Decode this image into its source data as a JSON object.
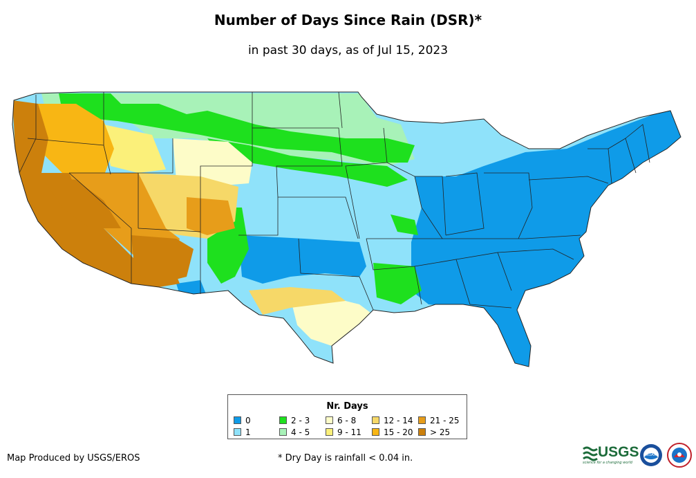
{
  "header": {
    "title": "Number of Days Since Rain (DSR)*",
    "subtitle": "in past 30 days, as of Jul 15, 2023"
  },
  "legend": {
    "title": "Nr. Days",
    "items": [
      {
        "label": "0",
        "color": "#0f9be8"
      },
      {
        "label": "1",
        "color": "#8fe2fa"
      },
      {
        "label": "2 - 3",
        "color": "#1ee01e"
      },
      {
        "label": "4 - 5",
        "color": "#a8f2b8"
      },
      {
        "label": "6 - 8",
        "color": "#fdfcc8"
      },
      {
        "label": "9 - 11",
        "color": "#fbf07a"
      },
      {
        "label": "12 - 14",
        "color": "#f6d868"
      },
      {
        "label": "15 - 20",
        "color": "#f8b614"
      },
      {
        "label": "21 - 25",
        "color": "#e79d1a"
      },
      {
        "label": "> 25",
        "color": "#cc800c"
      }
    ]
  },
  "footer": {
    "credit": "Map Produced by USGS/EROS",
    "note": "* Dry Day is rainfall < 0.04 in."
  },
  "logos": {
    "usgs_text": "USGS",
    "usgs_tagline": "science for a changing world",
    "noaa_text": "NOAA"
  }
}
